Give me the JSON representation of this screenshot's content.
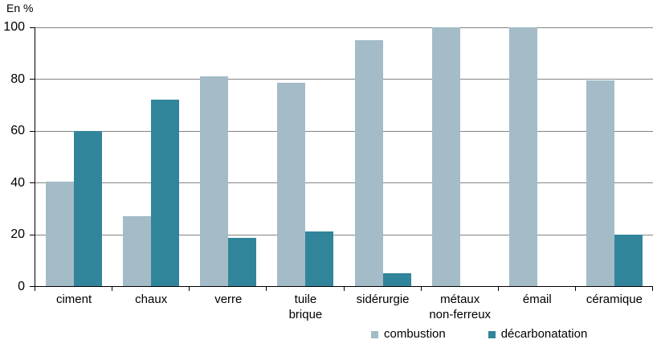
{
  "chart": {
    "unit_label": "En %",
    "colors": {
      "combustion": "#a3bcc7",
      "decarbonatation": "#31859b",
      "gridline": "#848484",
      "axis": "#000000",
      "text": "#000000",
      "background": "#ffffff"
    }
  },
  "chart_data": {
    "type": "bar",
    "title": "",
    "ylabel": "En %",
    "xlabel": "",
    "ylim": [
      0,
      100
    ],
    "yticks": [
      0,
      20,
      40,
      60,
      80,
      100
    ],
    "grid": true,
    "legend_position": "bottom",
    "categories": [
      "ciment",
      "chaux",
      "verre",
      "tuile\nbrique",
      "sidérurgie",
      "métaux\nnon-ferreux",
      "émail",
      "céramique"
    ],
    "series": [
      {
        "name": "combustion",
        "color": "#a3bcc7",
        "values": [
          40.5,
          27,
          81,
          78.5,
          95,
          100,
          100,
          79.5
        ]
      },
      {
        "name": "décarbonatation",
        "color": "#31859b",
        "values": [
          60,
          72,
          18.5,
          21,
          5,
          0,
          0,
          20
        ]
      }
    ]
  }
}
